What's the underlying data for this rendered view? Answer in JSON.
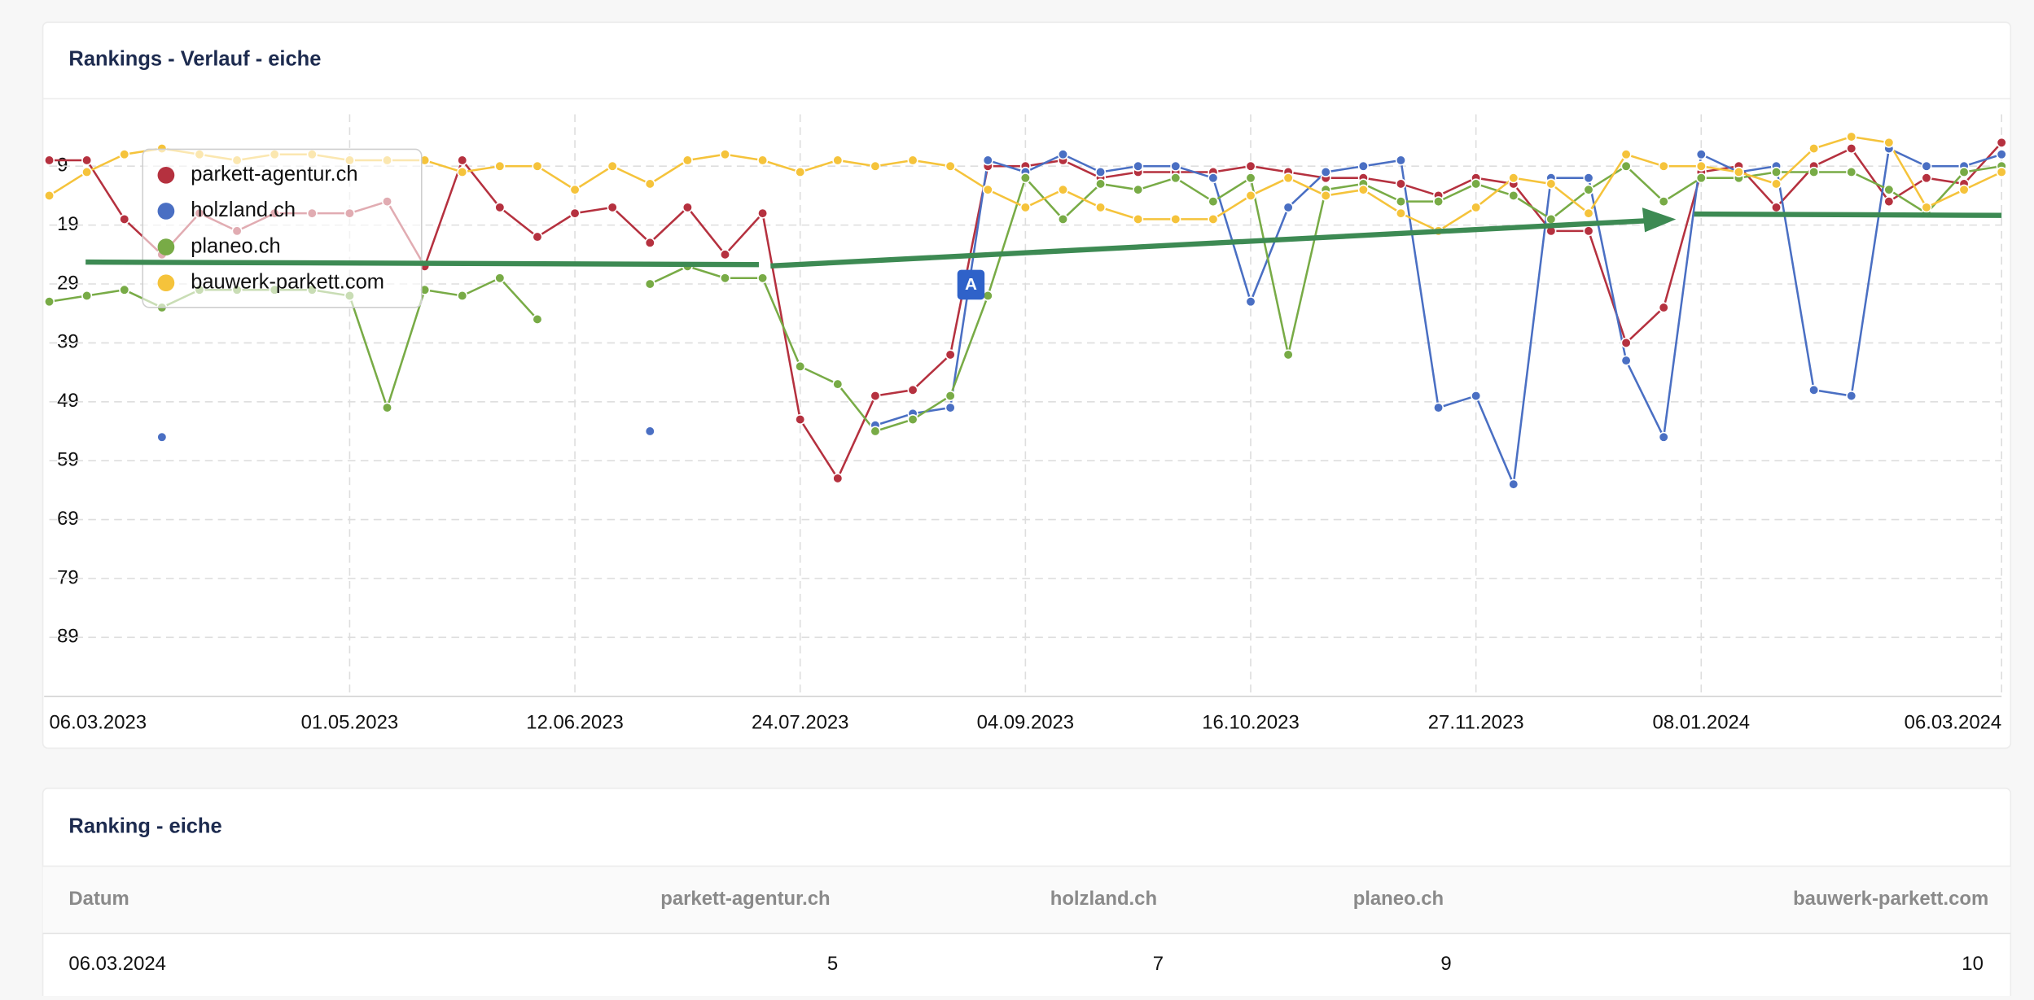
{
  "chart_data": {
    "type": "line",
    "title": "Rankings - Verlauf - eiche",
    "categories": [
      "06.03.2023",
      null,
      null,
      null,
      null,
      null,
      null,
      null,
      "01.05.2023",
      null,
      null,
      null,
      null,
      null,
      "12.06.2023",
      null,
      null,
      null,
      null,
      null,
      "24.07.2023",
      null,
      null,
      null,
      null,
      null,
      "04.09.2023",
      null,
      null,
      null,
      null,
      null,
      "16.10.2023",
      null,
      null,
      null,
      null,
      null,
      "27.11.2023",
      null,
      null,
      null,
      null,
      null,
      "08.01.2024",
      null,
      null,
      null,
      null,
      null,
      null,
      null,
      "06.03.2024"
    ],
    "ylim": [
      -1,
      99
    ],
    "y_inverted": true,
    "yticks": [
      9,
      19,
      29,
      39,
      49,
      59,
      69,
      79,
      89
    ],
    "grid": true,
    "legend": "top-left",
    "annotations": [
      "A"
    ],
    "series": [
      {
        "name": "parkett-agentur.ch",
        "color": "#b5313f",
        "values": [
          8,
          8,
          18,
          24,
          17,
          20,
          17,
          17,
          17,
          15,
          26,
          8,
          16,
          21,
          17,
          16,
          22,
          16,
          24,
          17,
          52,
          62,
          48,
          47,
          41,
          9,
          9,
          8,
          11,
          10,
          10,
          10,
          9,
          10,
          11,
          11,
          12,
          14,
          11,
          12,
          20,
          20,
          39,
          33,
          10,
          9,
          16,
          9,
          6,
          15,
          11,
          12,
          5
        ]
      },
      {
        "name": "holzland.ch",
        "color": "#4a6fc3",
        "values": [
          null,
          null,
          null,
          55,
          null,
          null,
          null,
          null,
          null,
          null,
          null,
          null,
          null,
          null,
          null,
          null,
          54,
          null,
          null,
          null,
          null,
          null,
          53,
          51,
          50,
          8,
          10,
          7,
          10,
          9,
          9,
          11,
          32,
          16,
          10,
          9,
          8,
          50,
          48,
          63,
          11,
          11,
          42,
          55,
          7,
          10,
          9,
          47,
          48,
          6,
          9,
          9,
          7
        ]
      },
      {
        "name": "planeo.ch",
        "color": "#78ab46",
        "values": [
          32,
          31,
          30,
          33,
          30,
          30,
          30,
          30,
          31,
          50,
          30,
          31,
          28,
          35,
          null,
          null,
          29,
          26,
          28,
          28,
          43,
          46,
          54,
          52,
          48,
          31,
          11,
          18,
          12,
          13,
          11,
          15,
          11,
          41,
          13,
          12,
          15,
          15,
          12,
          14,
          18,
          13,
          9,
          15,
          11,
          11,
          10,
          10,
          10,
          13,
          17,
          10,
          9
        ]
      },
      {
        "name": "bauwerk-parkett.com",
        "color": "#f5c33b",
        "values": [
          14,
          10,
          7,
          6,
          7,
          8,
          7,
          7,
          8,
          8,
          8,
          10,
          9,
          9,
          13,
          9,
          12,
          8,
          7,
          8,
          10,
          8,
          9,
          8,
          9,
          13,
          16,
          13,
          16,
          18,
          18,
          18,
          14,
          11,
          14,
          13,
          17,
          20,
          16,
          11,
          12,
          17,
          7,
          9,
          9,
          10,
          12,
          6,
          4,
          5,
          16,
          13,
          10
        ]
      }
    ]
  },
  "table": {
    "title": "Ranking - eiche",
    "columns": [
      "Datum",
      "parkett-agentur.ch",
      "holzland.ch",
      "planeo.ch",
      "bauwerk-parkett.com"
    ],
    "rows": [
      [
        "06.03.2024",
        5,
        7,
        9,
        10
      ]
    ]
  }
}
